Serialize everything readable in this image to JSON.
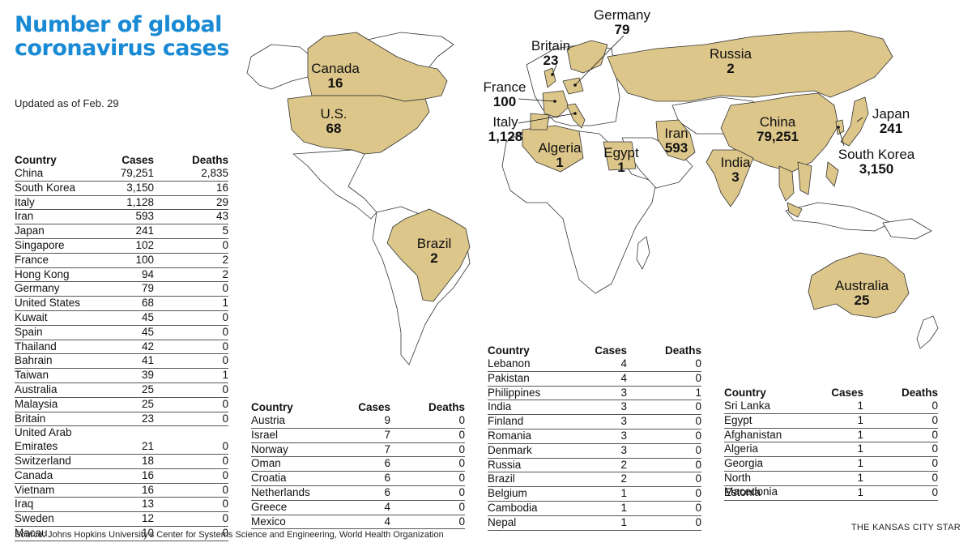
{
  "header": {
    "title": "Number of global coronavirus cases",
    "updated": "Updated as of Feb. 29"
  },
  "table_columns": {
    "country": "Country",
    "cases": "Cases",
    "deaths": "Deaths"
  },
  "tables": [
    [
      [
        "China",
        "79,251",
        "2,835"
      ],
      [
        "South Korea",
        "3,150",
        "16"
      ],
      [
        "Italy",
        "1,128",
        "29"
      ],
      [
        "Iran",
        "593",
        "43"
      ],
      [
        "Japan",
        "241",
        "5"
      ],
      [
        "Singapore",
        "102",
        "0"
      ],
      [
        "France",
        "100",
        "2"
      ],
      [
        "Hong Kong",
        "94",
        "2"
      ],
      [
        "Germany",
        "79",
        "0"
      ],
      [
        "United States",
        "68",
        "1"
      ],
      [
        "Kuwait",
        "45",
        "0"
      ],
      [
        "Spain",
        "45",
        "0"
      ],
      [
        "Thailand",
        "42",
        "0"
      ],
      [
        "Bahrain",
        "41",
        "0"
      ],
      [
        "Taiwan",
        "39",
        "1"
      ],
      [
        "Australia",
        "25",
        "0"
      ],
      [
        "Malaysia",
        "25",
        "0"
      ],
      [
        "Britain",
        "23",
        "0"
      ],
      [
        "United Arab\nEmirates",
        "21",
        "0"
      ],
      [
        "Switzerland",
        "18",
        "0"
      ],
      [
        "Canada",
        "16",
        "0"
      ],
      [
        "Vietnam",
        "16",
        "0"
      ],
      [
        "Iraq",
        "13",
        "0"
      ],
      [
        "Sweden",
        "12",
        "0"
      ],
      [
        "Macau",
        "10",
        "0"
      ]
    ],
    [
      [
        "Austria",
        "9",
        "0"
      ],
      [
        "Israel",
        "7",
        "0"
      ],
      [
        "Norway",
        "7",
        "0"
      ],
      [
        "Oman",
        "6",
        "0"
      ],
      [
        "Croatia",
        "6",
        "0"
      ],
      [
        "Netherlands",
        "6",
        "0"
      ],
      [
        "Greece",
        "4",
        "0"
      ],
      [
        "Mexico",
        "4",
        "0"
      ]
    ],
    [
      [
        "Lebanon",
        "4",
        "0"
      ],
      [
        "Pakistan",
        "4",
        "0"
      ],
      [
        "Philippines",
        "3",
        "1"
      ],
      [
        "India",
        "3",
        "0"
      ],
      [
        "Finland",
        "3",
        "0"
      ],
      [
        "Romania",
        "3",
        "0"
      ],
      [
        "Denmark",
        "3",
        "0"
      ],
      [
        "Russia",
        "2",
        "0"
      ],
      [
        "Brazil",
        "2",
        "0"
      ],
      [
        "Belgium",
        "1",
        "0"
      ],
      [
        "Cambodia",
        "1",
        "0"
      ],
      [
        "Nepal",
        "1",
        "0"
      ]
    ],
    [
      [
        "Sri Lanka",
        "1",
        "0"
      ],
      [
        "Egypt",
        "1",
        "0"
      ],
      [
        "Afghanistan",
        "1",
        "0"
      ],
      [
        "Algeria",
        "1",
        "0"
      ],
      [
        "Georgia",
        "1",
        "0"
      ],
      [
        "North Macedonia",
        "1",
        "0"
      ],
      [
        "Estonia",
        "1",
        "0"
      ]
    ]
  ],
  "map": {
    "affected_color": "#dcc68a",
    "labels": [
      {
        "name": "Canada",
        "value": "16"
      },
      {
        "name": "U.S.",
        "value": "68"
      },
      {
        "name": "Brazil",
        "value": "2"
      },
      {
        "name": "Britain",
        "value": "23"
      },
      {
        "name": "Germany",
        "value": "79"
      },
      {
        "name": "France",
        "value": "100"
      },
      {
        "name": "Italy",
        "value": "1,128"
      },
      {
        "name": "Algeria",
        "value": "1"
      },
      {
        "name": "Egypt",
        "value": "1"
      },
      {
        "name": "Iran",
        "value": "593"
      },
      {
        "name": "Russia",
        "value": "2"
      },
      {
        "name": "China",
        "value": "79,251"
      },
      {
        "name": "India",
        "value": "3"
      },
      {
        "name": "Japan",
        "value": "241"
      },
      {
        "name": "South Korea",
        "value": "3,150"
      },
      {
        "name": "Australia",
        "value": "25"
      }
    ]
  },
  "footer": {
    "source": "Source: Johns Hopkins University’s Center for Systems Science and Engineering, World Health Organization",
    "credit": "THE KANSAS CITY STAR"
  }
}
